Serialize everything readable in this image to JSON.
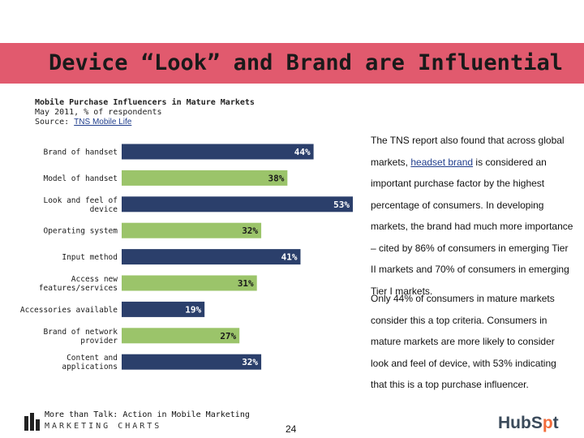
{
  "slide": {
    "title": "Device “Look” and Brand are Influential",
    "page_number": "24"
  },
  "chart_header": {
    "title": "Mobile Purchase Influencers in Mature Markets",
    "subtitle": "May 2011, % of respondents",
    "source_prefix": "Source: ",
    "source_link": "TNS Mobile Life"
  },
  "right_text": {
    "p1_a": "The TNS report also found that across global markets, ",
    "p1_link": "headset brand",
    "p1_b": " is considered an important purchase factor by the highest percentage of consumers. In developing markets, the brand had much more importance – cited by 86% of consumers in emerging Tier II markets and 70% of consumers in emerging Tier I markets.",
    "p2": "Only 44% of consumers in mature markets consider this a top criteria. Consumers in mature markets are more likely to consider look and feel of device, with 53% indicating that this is a top purchase influencer."
  },
  "footer": {
    "tagline": "More than Talk: Action in Mobile Marketing",
    "brand": "MARKETING CHARTS",
    "hubspot_a": "HubS",
    "hubspot_b": "p",
    "hubspot_c": "t"
  },
  "chart_data": {
    "type": "bar",
    "orientation": "horizontal",
    "categories": [
      [
        "Brand of handset"
      ],
      [
        "Model of handset"
      ],
      [
        "Look and feel of",
        "device"
      ],
      [
        "Operating system"
      ],
      [
        "Input method"
      ],
      [
        "Access new",
        "features/services"
      ],
      [
        "Accessories available"
      ],
      [
        "Brand of network",
        "provider"
      ],
      [
        "Content and",
        "applications"
      ]
    ],
    "values": [
      44,
      38,
      53,
      32,
      41,
      31,
      19,
      27,
      32
    ],
    "data_labels": [
      "44%",
      "38%",
      "53%",
      "32%",
      "41%",
      "31%",
      "19%",
      "27%",
      "32%"
    ],
    "colors": [
      "#2b3f6b",
      "#9bc46a"
    ],
    "xlim": [
      0,
      53
    ]
  }
}
